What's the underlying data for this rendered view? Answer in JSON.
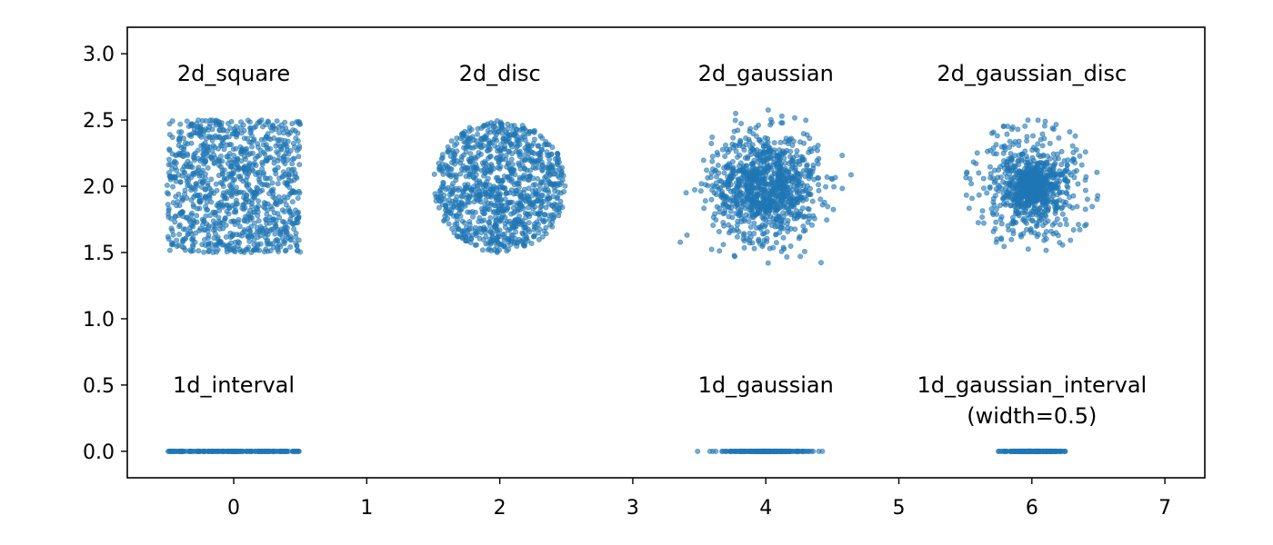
{
  "chart_data": {
    "type": "scatter",
    "title": "",
    "xlabel": "",
    "ylabel": "",
    "xlim": [
      -0.8,
      7.3
    ],
    "ylim": [
      -0.2,
      3.2
    ],
    "xticks": [
      "0",
      "1",
      "2",
      "3",
      "4",
      "5",
      "6",
      "7"
    ],
    "yticks": [
      "0.0",
      "0.5",
      "1.0",
      "1.5",
      "2.0",
      "2.5",
      "3.0"
    ],
    "grid": false,
    "legend": "none",
    "marker_color": "#1f77b4",
    "marker_alpha": 0.6,
    "groups": [
      {
        "label": "2d_square",
        "kind": "2d_square",
        "center": [
          0,
          2
        ],
        "half_width": 0.5,
        "n": 1000,
        "label_pos": [
          0,
          2.85
        ]
      },
      {
        "label": "2d_disc",
        "kind": "2d_disc",
        "center": [
          2,
          2
        ],
        "radius": 0.5,
        "n": 1000,
        "label_pos": [
          2,
          2.85
        ]
      },
      {
        "label": "2d_gaussian",
        "kind": "2d_gaussian",
        "center": [
          4,
          2
        ],
        "std": 0.2,
        "n": 1000,
        "label_pos": [
          4,
          2.85
        ]
      },
      {
        "label": "2d_gaussian_disc",
        "kind": "2d_gaussian_disc",
        "center": [
          6,
          2
        ],
        "radius": 0.5,
        "n": 1000,
        "label_pos": [
          6,
          2.85
        ]
      },
      {
        "label": "1d_interval",
        "kind": "1d_interval",
        "center": [
          0,
          0
        ],
        "half_width": 0.5,
        "n": 200,
        "label_pos": [
          0,
          0.5
        ]
      },
      {
        "label": "1d_gaussian",
        "kind": "1d_gaussian",
        "center": [
          4,
          0
        ],
        "std": 0.15,
        "n": 200,
        "label_pos": [
          4,
          0.5
        ]
      },
      {
        "label": "1d_gaussian_interval",
        "label2": "(width=0.5)",
        "kind": "1d_gaussian_interval",
        "center": [
          6,
          0
        ],
        "half_width": 0.25,
        "n": 200,
        "label_pos": [
          6,
          0.5
        ]
      }
    ]
  }
}
